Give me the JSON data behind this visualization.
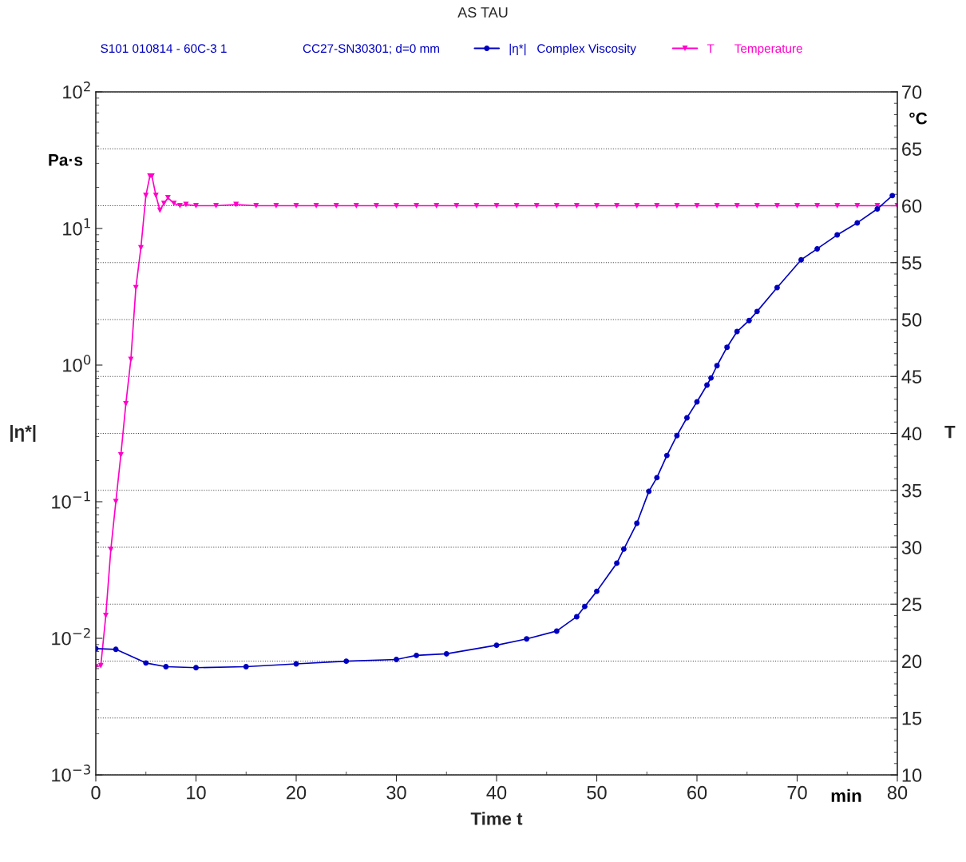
{
  "chart_data": {
    "type": "line",
    "title": "AS TAU",
    "xlabel": "Time t",
    "ylabel": "|η*|",
    "y2label": "T",
    "annotations": [
      "S101 010814 - 60C-3 1",
      "CC27-SN30301; d=0 mm",
      "Pa·s",
      "°C",
      "min"
    ],
    "series": [
      {
        "name": "|η*|   Complex Viscosity",
        "color": "#0000c0",
        "marker": "circle",
        "x": [
          0,
          2,
          5,
          7,
          10,
          15,
          20,
          25,
          30,
          32,
          35,
          40,
          43,
          46,
          48,
          48.8,
          50,
          52,
          52.7,
          54,
          55.2,
          56,
          57,
          58,
          59,
          60,
          61,
          61.4,
          62,
          63,
          64,
          65.2,
          66,
          68,
          70.4,
          72,
          74,
          76,
          78,
          79.5
        ],
        "values": [
          0.0084,
          0.0083,
          0.0066,
          0.0062,
          0.0061,
          0.0062,
          0.0065,
          0.0068,
          0.007,
          0.0075,
          0.0077,
          0.0089,
          0.0099,
          0.0113,
          0.0144,
          0.0171,
          0.0221,
          0.0355,
          0.045,
          0.0695,
          0.119,
          0.15,
          0.218,
          0.305,
          0.411,
          0.538,
          0.714,
          0.805,
          0.99,
          1.35,
          1.76,
          2.12,
          2.47,
          3.69,
          5.9,
          7.1,
          8.97,
          11.0,
          13.9,
          17.4
        ]
      },
      {
        "name": "T      Temperature",
        "color": "#ff00c8",
        "marker": "triangle",
        "axis": "y2",
        "x": [
          0,
          0.5,
          1,
          1.5,
          2,
          2.5,
          3,
          3.5,
          4,
          4.5,
          5,
          5.4,
          5.6,
          6,
          6.4,
          6.8,
          7.2,
          7.8,
          8.4,
          9,
          10,
          12,
          14,
          16,
          18,
          20,
          22,
          24,
          26,
          28,
          30,
          32,
          34,
          36,
          38,
          40,
          42,
          44,
          46,
          48,
          50,
          52,
          54,
          56,
          58,
          60,
          62,
          64,
          66,
          68,
          70,
          72,
          74,
          76,
          78,
          80
        ],
        "values": [
          19.5,
          19.6,
          24.0,
          29.8,
          34.0,
          38.1,
          42.6,
          46.5,
          52.8,
          56.3,
          60.9,
          62.6,
          62.6,
          60.9,
          59.6,
          60.2,
          60.7,
          60.2,
          60.0,
          60.1,
          60.0,
          60.0,
          60.1,
          60.0,
          60.0,
          60.0,
          60.0,
          60.0,
          60.0,
          60.0,
          60.0,
          60.0,
          60.0,
          60.0,
          60.0,
          60.0,
          60.0,
          60.0,
          60.0,
          60.0,
          60.0,
          60.0,
          60.0,
          60.0,
          60.0,
          60.0,
          60.0,
          60.0,
          60.0,
          60.0,
          60.0,
          60.0,
          60.0,
          60.0,
          60.0,
          60.0
        ]
      }
    ],
    "log": "y",
    "xlim": [
      0,
      80
    ],
    "xticks": [
      0,
      10,
      20,
      30,
      40,
      50,
      60,
      70,
      80
    ],
    "ylim": [
      0.001,
      100
    ],
    "yticks": [
      {
        "value": 0.001,
        "label": "10$^{−3}$"
      },
      {
        "value": 0.01,
        "label": "10$^{−2}$"
      },
      {
        "value": 0.1,
        "label": "10$^{−1}$"
      },
      {
        "value": 1,
        "label": "10$^{0}$"
      },
      {
        "value": 10,
        "label": "10$^{1}$"
      },
      {
        "value": 100,
        "label": "10$^{2}$"
      }
    ],
    "y2lim": [
      10,
      70
    ],
    "y2ticks": [
      10,
      15,
      20,
      25,
      30,
      35,
      40,
      45,
      50,
      55,
      60,
      65,
      70
    ],
    "grid": "y2",
    "legend": "top"
  }
}
